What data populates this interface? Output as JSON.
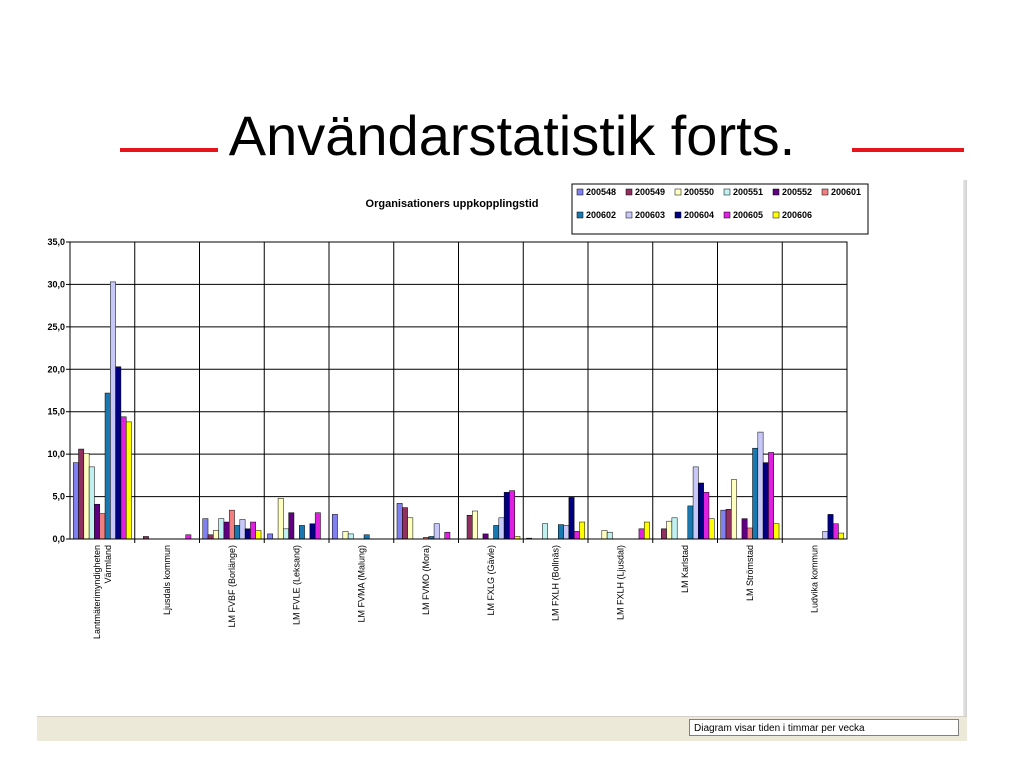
{
  "slide": {
    "title": "Användarstatistik forts.",
    "rule_color": "#e8141b"
  },
  "status": {
    "note": "Diagram visar tiden i timmar per vecka"
  },
  "chart_data": {
    "type": "bar",
    "title": "Organisationers uppkopplingstid",
    "xlabel": "",
    "ylabel": "",
    "ylim": [
      0,
      35
    ],
    "yticks": [
      "0,0",
      "5,0",
      "10,0",
      "15,0",
      "20,0",
      "25,0",
      "30,0",
      "35,0"
    ],
    "grid": true,
    "legend_position": "top-right",
    "categories": [
      [
        "Lantmäterimyndigheten",
        "Värmland"
      ],
      [
        "Ljusdals kommun"
      ],
      [
        "LM FVBF (Borlänge)"
      ],
      [
        "LM FVLE (Leksand)"
      ],
      [
        "LM FVMA (Malung)"
      ],
      [
        "LM FVMO (Mora)"
      ],
      [
        "LM FXLG (Gävle)"
      ],
      [
        "LM FXLH (Bollnäs)"
      ],
      [
        "LM FXLH (Ljusdal)"
      ],
      [
        "LM Karlstad"
      ],
      [
        "LM Strömstad"
      ],
      [
        "Ludvika kommun"
      ]
    ],
    "series": [
      {
        "name": "200548",
        "color": "#8080f0",
        "values": [
          9.0,
          0,
          2.4,
          0.6,
          2.9,
          4.2,
          0,
          0.1,
          0,
          0,
          3.4,
          0
        ]
      },
      {
        "name": "200549",
        "color": "#903060",
        "values": [
          10.6,
          0.3,
          0.5,
          0,
          0,
          3.7,
          2.8,
          0,
          0,
          1.2,
          3.5,
          0
        ]
      },
      {
        "name": "200550",
        "color": "#ffffc0",
        "values": [
          10.1,
          0,
          1.0,
          4.8,
          0.9,
          2.5,
          3.3,
          0,
          1.0,
          2.1,
          7.0,
          0
        ]
      },
      {
        "name": "200551",
        "color": "#c0f0f0",
        "values": [
          8.5,
          0,
          2.4,
          1.2,
          0.6,
          0,
          0,
          1.8,
          0.8,
          2.5,
          0,
          0
        ]
      },
      {
        "name": "200552",
        "color": "#600080",
        "values": [
          4.1,
          0,
          2.0,
          3.1,
          0,
          0,
          0.6,
          0,
          0,
          0,
          2.4,
          0
        ]
      },
      {
        "name": "200601",
        "color": "#f08080",
        "values": [
          3.0,
          0,
          3.4,
          0,
          0,
          0.2,
          0,
          0,
          0,
          0,
          1.3,
          0
        ]
      },
      {
        "name": "200602",
        "color": "#1878b0",
        "values": [
          17.2,
          0,
          1.6,
          1.6,
          0.5,
          0.3,
          1.6,
          1.7,
          0,
          3.9,
          10.7,
          0
        ]
      },
      {
        "name": "200603",
        "color": "#c8c8f8",
        "values": [
          30.3,
          0,
          2.3,
          0,
          0,
          1.8,
          2.5,
          1.6,
          0,
          8.5,
          12.6,
          0.9
        ]
      },
      {
        "name": "200604",
        "color": "#000080",
        "values": [
          20.3,
          0,
          1.2,
          1.8,
          0,
          0,
          5.5,
          4.9,
          0,
          6.6,
          9.0,
          2.9
        ]
      },
      {
        "name": "200605",
        "color": "#e020e0",
        "values": [
          14.4,
          0.5,
          2.0,
          3.1,
          0,
          0.8,
          5.7,
          0.9,
          1.2,
          5.5,
          10.2,
          1.8
        ]
      },
      {
        "name": "200606",
        "color": "#ffff00",
        "values": [
          13.8,
          0,
          1.0,
          0,
          0,
          0,
          0.3,
          2.0,
          2.0,
          2.4,
          1.8,
          0.7
        ]
      }
    ]
  }
}
